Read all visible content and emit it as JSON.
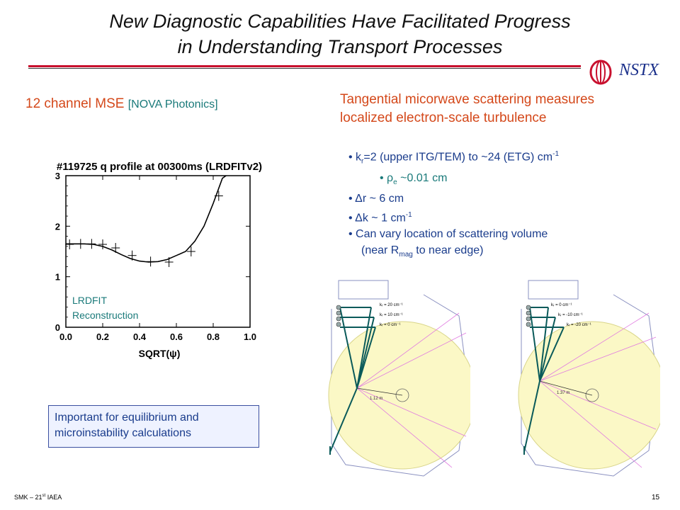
{
  "title": {
    "line1": "New Diagnostic Capabilities Have Facilitated Progress",
    "line2": "in Understanding Transport Processes"
  },
  "logo": {
    "text": "NSTX",
    "color": "#1a2f8a",
    "ring_color": "#c8102e"
  },
  "colors": {
    "accent": "#d4481a",
    "teal": "#1a7a7a",
    "navy": "#1a3c8c",
    "rule": "#c8102e"
  },
  "left": {
    "heading": "12 channel MSE",
    "vendor": "[NOVA Photonics]",
    "box_line1": "Important for equilibrium and",
    "box_line2": "microinstability calculations"
  },
  "right": {
    "heading_line1": "Tangential micorwave scattering measures",
    "heading_line2": "localized electron-scale turbulence",
    "bullets": {
      "b1_pre": "k",
      "b1_sub": "r",
      "b1_post": "=2 (upper ITG/TEM) to ~24 (ETG) cm",
      "b1_sup": "-1",
      "b2_pre": "ρ",
      "b2_sub": "e",
      "b2_post": " ~0.01 cm",
      "b3": "Δr ~ 6 cm",
      "b4_pre": "Δk ~ 1 cm",
      "b4_sup": "-1",
      "b5": "Can vary location of scattering volume",
      "b6_pre": "(near R",
      "b6_sub": "mag",
      "b6_post": " to near edge)"
    }
  },
  "diagrams": [
    {
      "labels": [
        "kᵣ = 20 cm⁻¹",
        "kᵣ = 10 cm⁻¹",
        "kᵣ = 0 cm⁻¹"
      ],
      "distance": "1.12 m"
    },
    {
      "labels": [
        "kᵣ = 0 cm⁻¹",
        "kᵣ = -10 cm⁻¹",
        "kᵣ = -20 cm⁻¹"
      ],
      "distance": "1.37 m"
    }
  ],
  "chart_data": {
    "type": "scatter",
    "title": "#119725 q profile at 00300ms (LRDFITv2)",
    "xlabel": "SQRT(ψ)",
    "ylabel": "",
    "xlim": [
      0.0,
      1.0
    ],
    "ylim": [
      0,
      3
    ],
    "x_ticks": [
      "0.0",
      "0.2",
      "0.4",
      "0.6",
      "0.8",
      "1.0"
    ],
    "y_ticks": [
      "0",
      "1",
      "2",
      "3"
    ],
    "annotation": [
      "LRDFIT",
      "Reconstruction"
    ],
    "series": [
      {
        "name": "curve",
        "x": [
          0.0,
          0.05,
          0.1,
          0.15,
          0.2,
          0.25,
          0.3,
          0.35,
          0.4,
          0.45,
          0.5,
          0.55,
          0.6,
          0.65,
          0.7,
          0.75,
          0.8,
          0.85,
          0.87
        ],
        "y": [
          1.65,
          1.65,
          1.65,
          1.64,
          1.6,
          1.53,
          1.44,
          1.36,
          1.31,
          1.29,
          1.3,
          1.34,
          1.42,
          1.5,
          1.7,
          2.0,
          2.45,
          2.95,
          3.1
        ]
      },
      {
        "name": "MSE points",
        "x": [
          0.02,
          0.08,
          0.14,
          0.2,
          0.27,
          0.36,
          0.46,
          0.56,
          0.68,
          0.83
        ],
        "y": [
          1.64,
          1.65,
          1.65,
          1.64,
          1.57,
          1.42,
          1.3,
          1.29,
          1.5,
          2.6
        ]
      }
    ]
  }
}
